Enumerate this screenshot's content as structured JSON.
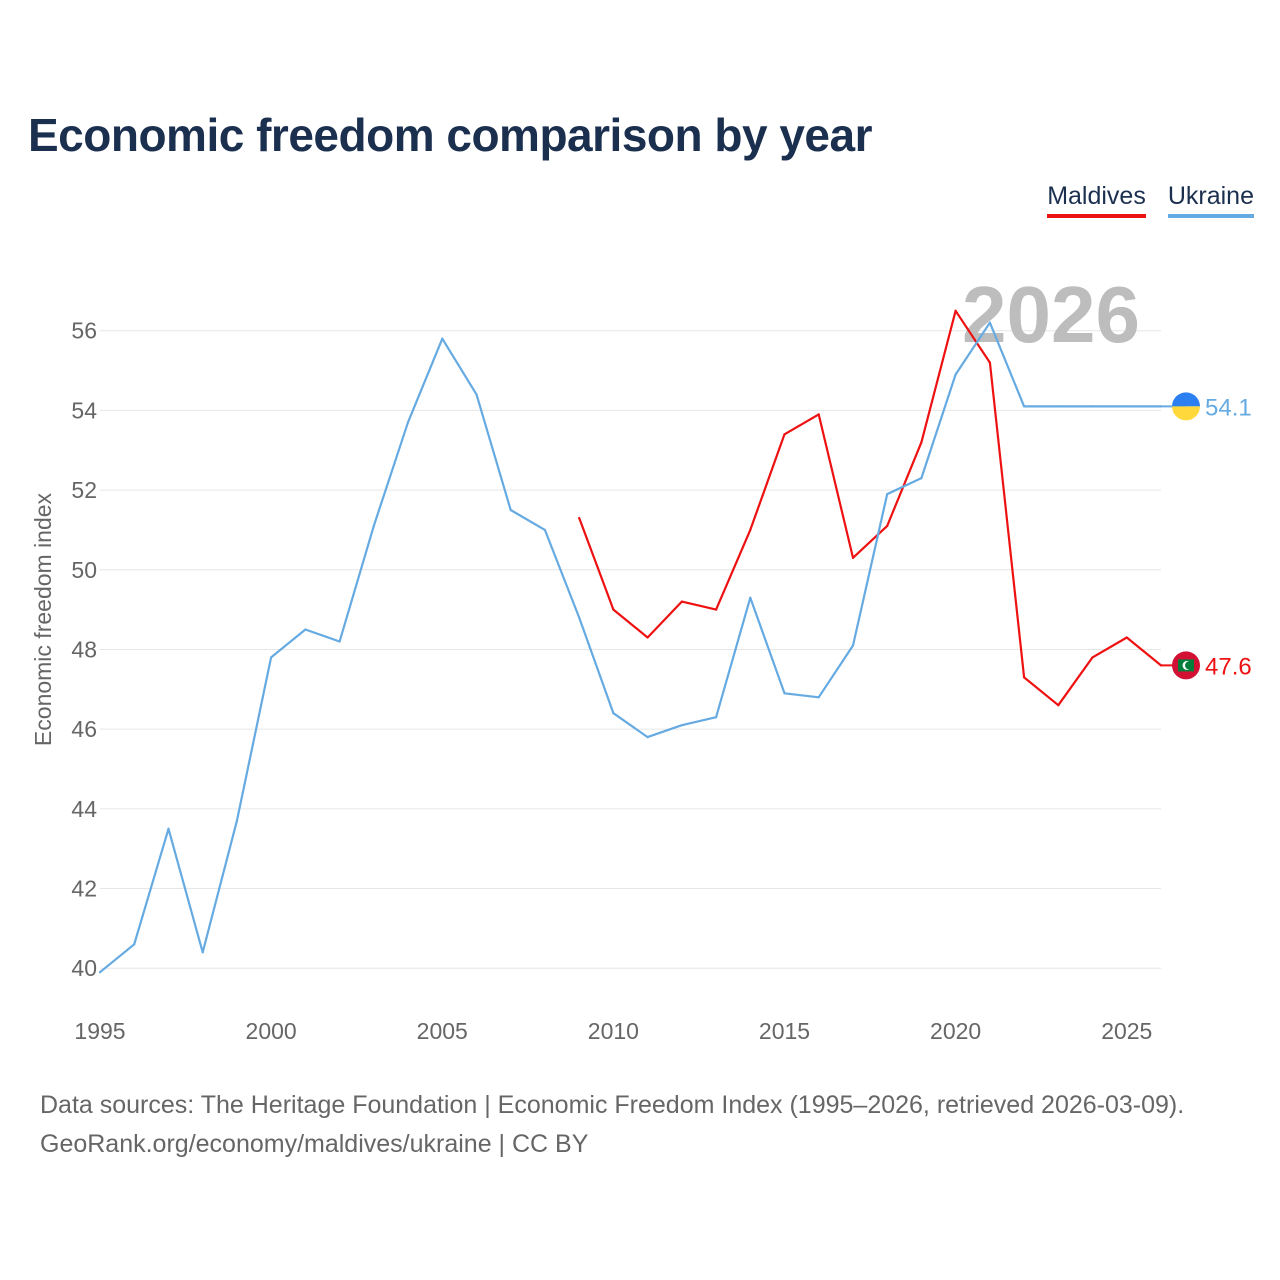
{
  "title": "Economic freedom comparison by year",
  "legend": [
    {
      "label": "Maldives",
      "color": "#ee1111"
    },
    {
      "label": "Ukraine",
      "color": "#66aae2"
    }
  ],
  "chart_data": {
    "type": "line",
    "title": "Economic freedom comparison by year",
    "xlabel": "",
    "ylabel": "Economic freedom index",
    "year_watermark": "2026",
    "xlim": [
      1995,
      2026
    ],
    "ylim": [
      38.5,
      58
    ],
    "xticks": [
      1995,
      2000,
      2005,
      2010,
      2015,
      2020,
      2025
    ],
    "yticks": [
      40,
      42,
      44,
      46,
      48,
      50,
      52,
      54,
      56
    ],
    "grid": true,
    "legend_position": "top-right",
    "series": [
      {
        "name": "Maldives",
        "color": "#ee1111",
        "end_label": "47.6",
        "x": [
          2009,
          2010,
          2011,
          2012,
          2013,
          2014,
          2015,
          2016,
          2017,
          2018,
          2019,
          2020,
          2021,
          2022,
          2023,
          2024,
          2025,
          2026
        ],
        "values": [
          51.3,
          49.0,
          48.3,
          49.2,
          49.0,
          51.0,
          53.4,
          53.9,
          50.3,
          51.1,
          53.2,
          56.5,
          55.2,
          47.3,
          46.6,
          47.8,
          48.3,
          47.6
        ]
      },
      {
        "name": "Ukraine",
        "color": "#66aae2",
        "end_label": "54.1",
        "x": [
          1995,
          1996,
          1997,
          1998,
          1999,
          2000,
          2001,
          2002,
          2003,
          2004,
          2005,
          2006,
          2007,
          2008,
          2009,
          2010,
          2011,
          2012,
          2013,
          2014,
          2015,
          2016,
          2017,
          2018,
          2019,
          2020,
          2021,
          2022,
          2023,
          2024,
          2025,
          2026
        ],
        "values": [
          39.9,
          40.6,
          43.5,
          40.4,
          43.7,
          47.8,
          48.5,
          48.2,
          51.1,
          53.7,
          55.8,
          54.4,
          51.5,
          51.0,
          48.8,
          46.4,
          45.8,
          46.1,
          46.3,
          49.3,
          46.9,
          46.8,
          48.1,
          51.9,
          52.3,
          54.9,
          56.2,
          54.1,
          54.1,
          54.1,
          54.1,
          54.1
        ]
      }
    ]
  },
  "source": {
    "line1": "Data sources: The Heritage Foundation | Economic Freedom Index (1995–2026, retrieved 2026-03-09).",
    "line2": "GeoRank.org/economy/maldives/ukraine | CC BY"
  }
}
